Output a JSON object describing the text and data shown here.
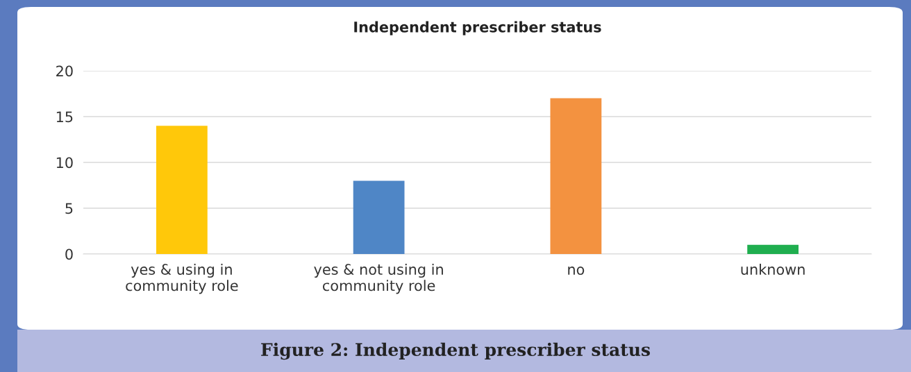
{
  "chart_data": {
    "type": "bar",
    "title": "Independent prescriber status",
    "categories": [
      "yes & using in\ncommunity role",
      "yes & not using in\ncommunity role",
      "no",
      "unknown"
    ],
    "values": [
      14,
      8,
      17,
      1
    ],
    "colors": [
      "#ffc80a",
      "#4f86c6",
      "#f39240",
      "#1fae4f"
    ],
    "ylim": [
      0,
      20
    ],
    "yticks": [
      0,
      5,
      10,
      15,
      20
    ],
    "grid": "y",
    "legend": false,
    "annotations": [
      "Figure 2: Independent prescriber status"
    ]
  }
}
